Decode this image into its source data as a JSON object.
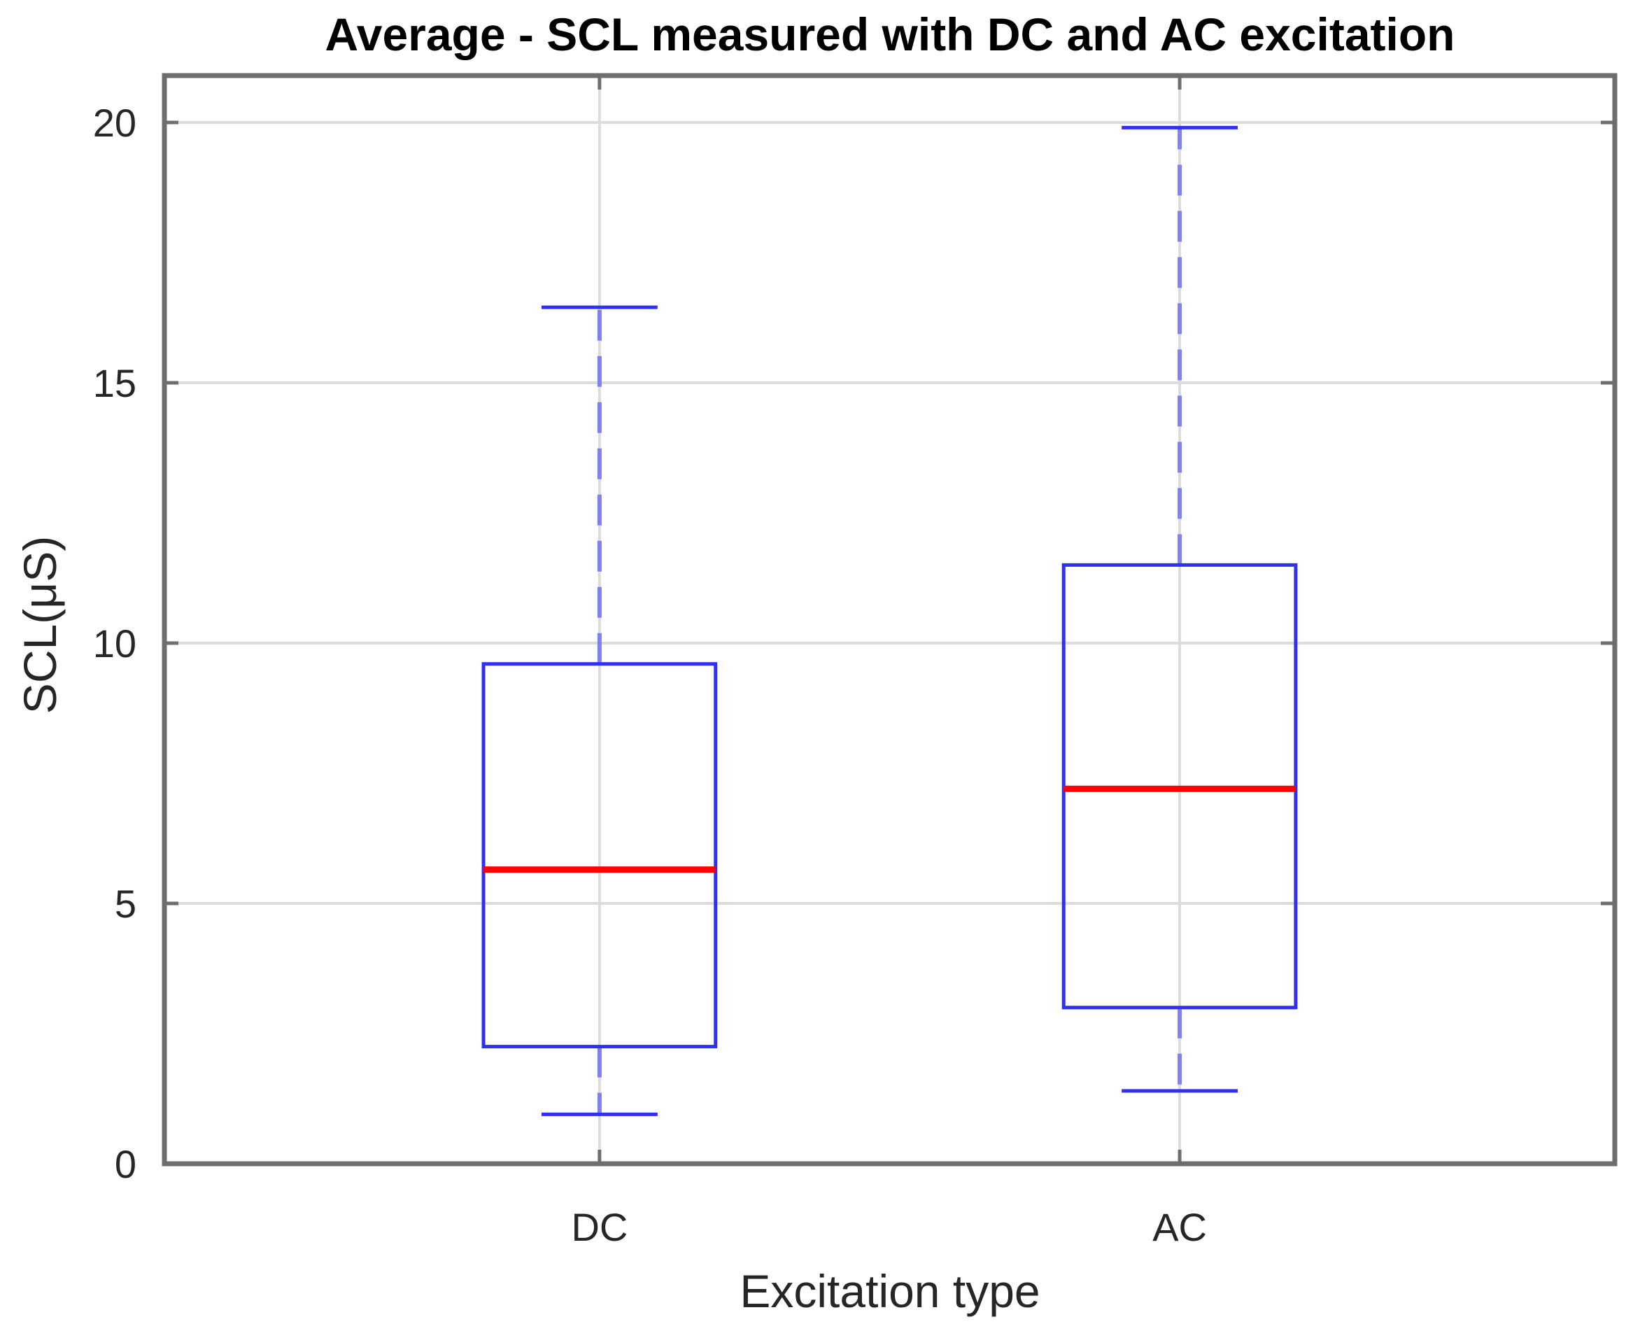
{
  "chart_data": {
    "type": "box",
    "title": "Average - SCL measured with DC and AC excitation",
    "xlabel": "Excitation type",
    "ylabel": "SCL(μS)",
    "ylim": [
      0,
      20.9
    ],
    "yticks": [
      0,
      5,
      10,
      15,
      20
    ],
    "grid": true,
    "categories": [
      "DC",
      "AC"
    ],
    "boxes": [
      {
        "name": "DC",
        "whisker_low": 0.95,
        "q1": 2.25,
        "median": 5.65,
        "q3": 9.6,
        "whisker_high": 16.45
      },
      {
        "name": "AC",
        "whisker_low": 1.4,
        "q1": 3.0,
        "median": 7.2,
        "q3": 11.5,
        "whisker_high": 19.9
      }
    ],
    "colors": {
      "box": "#3030ee",
      "whisker": "#8080f0",
      "median": "#ff0000",
      "grid": "#dcdcdc",
      "axis": "#6e6e6e"
    }
  }
}
